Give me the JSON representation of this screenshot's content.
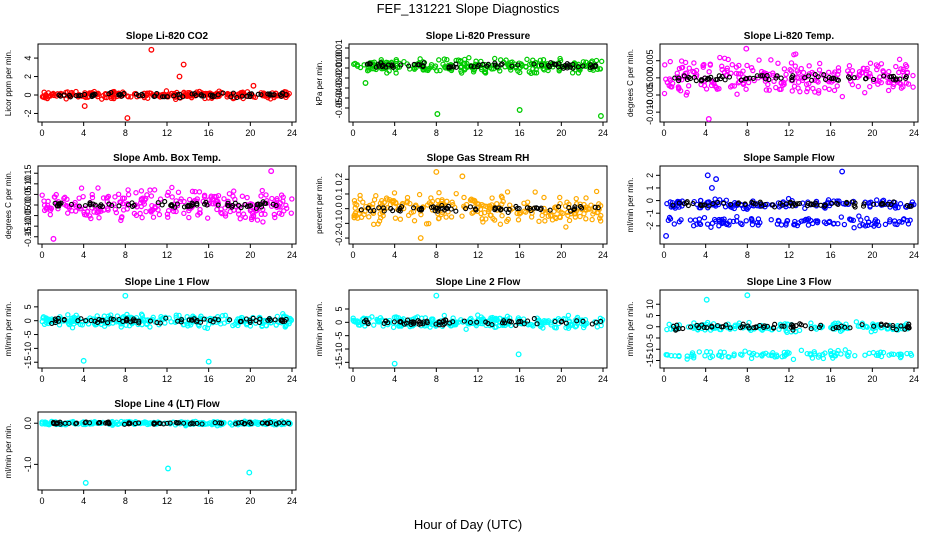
{
  "figure": {
    "title": "FEF_131221  Slope Diagnostics",
    "xlabel": "Hour of Day (UTC)"
  },
  "chart_data": [
    {
      "id": "p1",
      "type": "scatter",
      "title": "Slope Li-820 CO2",
      "ylabel": "Licor ppm per min.",
      "xlim": [
        0,
        24
      ],
      "ylim": [
        -2.6,
        5.2
      ],
      "yticks": [
        -2,
        0,
        2,
        4
      ],
      "ytick_labels": [
        "-2",
        "0",
        "2",
        "4"
      ],
      "xticks": [
        0,
        4,
        8,
        12,
        16,
        20,
        24
      ],
      "color": "#ff0000",
      "center": 0,
      "spread": 0.35,
      "outliers": [
        [
          10.5,
          4.9
        ],
        [
          13.2,
          2.0
        ],
        [
          13.6,
          3.3
        ],
        [
          8.2,
          -2.5
        ],
        [
          4.1,
          -1.2
        ],
        [
          20.3,
          1.0
        ]
      ]
    },
    {
      "id": "p2",
      "type": "scatter",
      "title": "Slope Li-820 Pressure",
      "ylabel": "kPa per min.",
      "xlim": [
        0,
        24
      ],
      "ylim": [
        -0.061,
        0.011
      ],
      "yticks": [
        -0.05,
        -0.04,
        -0.03,
        -0.02,
        -0.01,
        0,
        0.01
      ],
      "ytick_labels": [
        "-0.05",
        "-0.04",
        "-0.03",
        "-0.02",
        "-0.01",
        "0.00",
        "0.01"
      ],
      "xticks": [
        0,
        4,
        8,
        12,
        16,
        20,
        24
      ],
      "color": "#00cc00",
      "center": -0.008,
      "spread": 0.006,
      "outliers": [
        [
          8.1,
          -0.056
        ],
        [
          16.0,
          -0.052
        ],
        [
          23.8,
          -0.058
        ],
        [
          1.2,
          -0.025
        ]
      ]
    },
    {
      "id": "p3",
      "type": "scatter",
      "title": "Slope Li-820 Temp.",
      "ylabel": "degrees C per min.",
      "xlim": [
        0,
        24
      ],
      "ylim": [
        -0.012,
        0.009
      ],
      "yticks": [
        -0.01,
        -0.005,
        0,
        0.005
      ],
      "ytick_labels": [
        "-0.010",
        "-0.005",
        "0.000",
        "0.005"
      ],
      "xticks": [
        0,
        4,
        8,
        12,
        16,
        20,
        24
      ],
      "color": "#ff00ff",
      "center": 0,
      "spread": 0.005,
      "outliers": [
        [
          7.9,
          0.0085
        ],
        [
          4.3,
          -0.012
        ]
      ]
    },
    {
      "id": "p4",
      "type": "scatter",
      "title": "Slope Amb. Box Temp.",
      "ylabel": "degrees C per min.",
      "xlim": [
        0,
        24
      ],
      "ylim": [
        -0.17,
        0.17
      ],
      "yticks": [
        -0.15,
        -0.1,
        -0.05,
        0,
        0.05,
        0.1,
        0.15
      ],
      "ytick_labels": [
        "-0.15",
        "-0.10",
        "-0.05",
        "0.00",
        "0.05",
        "0.10",
        "0.15"
      ],
      "xticks": [
        0,
        4,
        8,
        12,
        16,
        20,
        24
      ],
      "color": "#ff00ff",
      "center": 0,
      "spread": 0.07,
      "outliers": [
        [
          22.0,
          0.16
        ],
        [
          1.1,
          -0.16
        ]
      ]
    },
    {
      "id": "p5",
      "type": "scatter",
      "title": "Slope Gas Stream RH",
      "ylabel": "percent per min.",
      "xlim": [
        0,
        24
      ],
      "ylim": [
        -0.22,
        0.27
      ],
      "yticks": [
        -0.2,
        -0.1,
        0,
        0.1,
        0.2
      ],
      "ytick_labels": [
        "-0.2",
        "-0.1",
        "0.0",
        "0.1",
        "0.2"
      ],
      "xticks": [
        0,
        4,
        8,
        12,
        16,
        20,
        24
      ],
      "color": "#ffaa00",
      "center": 0,
      "spread": 0.09,
      "outliers": [
        [
          8.0,
          0.25
        ],
        [
          10.5,
          0.22
        ],
        [
          6.5,
          -0.2
        ]
      ]
    },
    {
      "id": "p6",
      "type": "scatter",
      "title": "Slope Sample Flow",
      "ylabel": "ml/min per min.",
      "xlim": [
        0,
        24
      ],
      "ylim": [
        -3.2,
        2.5
      ],
      "yticks": [
        -2,
        -1,
        0,
        1,
        2
      ],
      "ytick_labels": [
        "-2",
        "-1",
        "0",
        "1",
        "2"
      ],
      "xticks": [
        0,
        4,
        8,
        12,
        16,
        20,
        24
      ],
      "color": "#0000ff",
      "center": -0.3,
      "spread": 0.35,
      "band2": -1.7,
      "outliers": [
        [
          4.2,
          2.0
        ],
        [
          5.0,
          1.7
        ],
        [
          4.6,
          1.0
        ],
        [
          17.1,
          2.3
        ],
        [
          0.2,
          -2.8
        ]
      ]
    },
    {
      "id": "p7",
      "type": "scatter",
      "title": "Slope Line 1 Flow",
      "ylabel": "ml/min per min.",
      "xlim": [
        0,
        24
      ],
      "ylim": [
        -16,
        10
      ],
      "yticks": [
        -15,
        -10,
        -5,
        0,
        5
      ],
      "ytick_labels": [
        "-15",
        "-10",
        "-5",
        "0",
        "5"
      ],
      "xticks": [
        0,
        4,
        8,
        12,
        16,
        20,
        24
      ],
      "color": "#00ffff",
      "center": 0,
      "spread": 2.0,
      "outliers": [
        [
          8.0,
          9.0
        ],
        [
          4.0,
          -14.5
        ],
        [
          16.0,
          -14.8
        ]
      ]
    },
    {
      "id": "p8",
      "type": "scatter",
      "title": "Slope Line 2 Flow",
      "ylabel": "ml/min per min.",
      "xlim": [
        0,
        24
      ],
      "ylim": [
        -16,
        11
      ],
      "yticks": [
        -15,
        -10,
        -5,
        0,
        5
      ],
      "ytick_labels": [
        "-15",
        "-10",
        "-5",
        "0",
        "5"
      ],
      "xticks": [
        0,
        4,
        8,
        12,
        16,
        20,
        24
      ],
      "color": "#00ffff",
      "center": 0,
      "spread": 2.0,
      "outliers": [
        [
          8.0,
          10.0
        ],
        [
          4.0,
          -15.5
        ],
        [
          15.9,
          -12.0
        ]
      ]
    },
    {
      "id": "p9",
      "type": "scatter",
      "title": "Slope Line 3 Flow",
      "ylabel": "ml/min per min.",
      "xlim": [
        0,
        24
      ],
      "ylim": [
        -17,
        15
      ],
      "yticks": [
        -15,
        -10,
        -5,
        0,
        5,
        10
      ],
      "ytick_labels": [
        "-15",
        "-10",
        "-5",
        "0",
        "5",
        "10"
      ],
      "xticks": [
        0,
        4,
        8,
        12,
        16,
        20,
        24
      ],
      "color": "#00ffff",
      "center": 0,
      "spread": 1.8,
      "band2": -12.5,
      "outliers": [
        [
          4.1,
          12.0
        ],
        [
          8.0,
          14.0
        ]
      ]
    },
    {
      "id": "p10",
      "type": "scatter",
      "title": "Slope Line 4 (LT) Flow",
      "ylabel": "ml/min per min.",
      "xlim": [
        0,
        24
      ],
      "ylim": [
        -1.55,
        0.2
      ],
      "yticks": [
        -1.0,
        0
      ],
      "ytick_labels": [
        "-1.0",
        "0.0"
      ],
      "xticks": [
        0,
        4,
        8,
        12,
        16,
        20,
        24
      ],
      "color": "#00ffff",
      "center": 0,
      "spread": 0.04,
      "outliers": [
        [
          4.2,
          -1.45
        ],
        [
          12.1,
          -1.1
        ],
        [
          19.9,
          -1.2
        ]
      ]
    }
  ]
}
